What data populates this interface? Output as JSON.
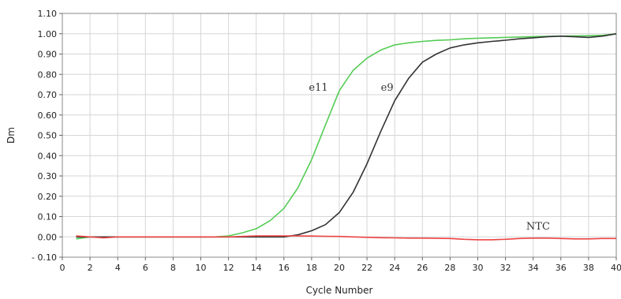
{
  "chart_data": {
    "type": "line",
    "title": "",
    "xlabel": "Cycle Number",
    "ylabel": "Dm",
    "xlim": [
      0,
      40
    ],
    "ylim": [
      -0.1,
      1.1
    ],
    "x_ticks": [
      "0",
      "2",
      "4",
      "6",
      "8",
      "10",
      "12",
      "14",
      "16",
      "18",
      "20",
      "22",
      "24",
      "26",
      "28",
      "30",
      "32",
      "34",
      "36",
      "38",
      "40"
    ],
    "y_ticks": [
      "- 0.10",
      "0.00",
      "0.10",
      "0.20",
      "0.30",
      "0.40",
      "0.50",
      "0.60",
      "0.70",
      "0.80",
      "0.90",
      "1.00",
      "1.10"
    ],
    "grid": true,
    "legend": "none",
    "annotations": [
      {
        "text": "e11",
        "x": 17.8,
        "y": 0.72
      },
      {
        "text": "e9",
        "x": 23.0,
        "y": 0.72
      },
      {
        "text": "NTC",
        "x": 33.5,
        "y": 0.035
      }
    ],
    "series": [
      {
        "name": "e11",
        "color": "#55cc55",
        "x": [
          1,
          2,
          3,
          4,
          5,
          6,
          7,
          8,
          9,
          10,
          11,
          12,
          13,
          14,
          15,
          16,
          17,
          18,
          19,
          20,
          21,
          22,
          23,
          24,
          25,
          26,
          27,
          28,
          29,
          30,
          31,
          32,
          33,
          34,
          35,
          36,
          37,
          38,
          39,
          40
        ],
        "y": [
          -0.01,
          0.0,
          0.0,
          0.0,
          0.0,
          0.0,
          0.0,
          0.0,
          0.0,
          0.0,
          0.0,
          0.005,
          0.02,
          0.04,
          0.08,
          0.14,
          0.24,
          0.38,
          0.55,
          0.72,
          0.82,
          0.88,
          0.92,
          0.945,
          0.955,
          0.962,
          0.967,
          0.97,
          0.975,
          0.978,
          0.98,
          0.982,
          0.984,
          0.986,
          0.987,
          0.988,
          0.989,
          0.99,
          0.992,
          1.0
        ]
      },
      {
        "name": "e9",
        "color": "#333333",
        "x": [
          1,
          2,
          3,
          4,
          5,
          6,
          7,
          8,
          9,
          10,
          11,
          12,
          13,
          14,
          15,
          16,
          17,
          18,
          19,
          20,
          21,
          22,
          23,
          24,
          25,
          26,
          27,
          28,
          29,
          30,
          31,
          32,
          33,
          34,
          35,
          36,
          37,
          38,
          39,
          40
        ],
        "y": [
          0.0,
          0.0,
          0.0,
          0.0,
          0.0,
          0.0,
          0.0,
          0.0,
          0.0,
          0.0,
          0.0,
          0.0,
          0.0,
          0.0,
          0.0,
          0.0,
          0.01,
          0.03,
          0.06,
          0.12,
          0.22,
          0.36,
          0.52,
          0.67,
          0.78,
          0.86,
          0.9,
          0.93,
          0.945,
          0.955,
          0.962,
          0.968,
          0.975,
          0.98,
          0.985,
          0.988,
          0.985,
          0.982,
          0.988,
          1.0
        ]
      },
      {
        "name": "NTC",
        "color": "#ee4444",
        "x": [
          1,
          2,
          3,
          4,
          5,
          6,
          7,
          8,
          9,
          10,
          11,
          12,
          13,
          14,
          15,
          16,
          17,
          18,
          19,
          20,
          21,
          22,
          23,
          24,
          25,
          26,
          27,
          28,
          29,
          30,
          31,
          32,
          33,
          34,
          35,
          36,
          37,
          38,
          39,
          40
        ],
        "y": [
          0.005,
          0.0,
          -0.005,
          0.0,
          0.0,
          0.0,
          0.0,
          0.0,
          0.0,
          0.0,
          0.0,
          0.0,
          0.002,
          0.005,
          0.005,
          0.005,
          0.005,
          0.004,
          0.003,
          0.002,
          0.0,
          -0.002,
          -0.004,
          -0.005,
          -0.006,
          -0.006,
          -0.007,
          -0.008,
          -0.012,
          -0.014,
          -0.014,
          -0.012,
          -0.008,
          -0.006,
          -0.006,
          -0.008,
          -0.01,
          -0.01,
          -0.008,
          -0.008
        ]
      }
    ]
  }
}
